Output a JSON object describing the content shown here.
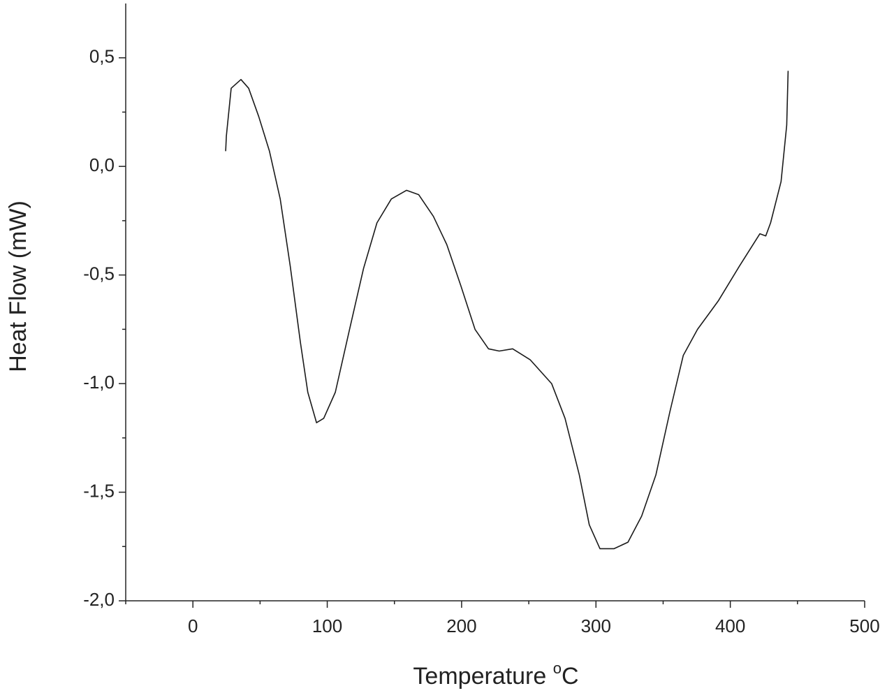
{
  "chart_data": {
    "type": "line",
    "x_label": "Temperature",
    "x_label_sup": "o",
    "x_label_unit": "C",
    "y_label": "Heat Flow (mW)",
    "color": "#1a1a1a",
    "x": [
      24.4,
      24.9,
      28.5,
      35.8,
      41.5,
      49,
      57,
      65,
      72.5,
      80,
      85.5,
      92,
      97.4,
      106,
      116.6,
      127,
      137,
      147.7,
      159,
      168,
      179,
      189,
      199.5,
      210,
      220,
      228,
      238,
      251,
      267,
      277,
      287.6,
      295,
      303,
      313.5,
      323.8,
      334,
      344.6,
      355,
      365,
      375.6,
      391,
      406.7,
      422,
      426.4,
      430,
      437.8,
      442,
      443
    ],
    "values": [
      0.07,
      0.14,
      0.36,
      0.4,
      0.36,
      0.23,
      0.07,
      -0.15,
      -0.46,
      -0.81,
      -1.04,
      -1.18,
      -1.16,
      -1.04,
      -0.75,
      -0.47,
      -0.26,
      -0.15,
      -0.11,
      -0.13,
      -0.23,
      -0.36,
      -0.55,
      -0.75,
      -0.84,
      -0.85,
      -0.84,
      -0.89,
      -1.0,
      -1.16,
      -1.42,
      -1.65,
      -1.76,
      -1.76,
      -1.73,
      -1.61,
      -1.42,
      -1.13,
      -0.87,
      -0.75,
      -0.62,
      -0.46,
      -0.31,
      -0.32,
      -0.26,
      -0.07,
      0.19,
      0.44
    ],
    "xlim": [
      -50,
      500
    ],
    "xticks": [
      0,
      100,
      200,
      300,
      400,
      500
    ],
    "ylim": [
      -2.0,
      0.75
    ],
    "yticks": [
      {
        "value": 0.5,
        "label": "0,5"
      },
      {
        "value": 0.0,
        "label": "0,0"
      },
      {
        "value": -0.5,
        "label": "-0,5"
      },
      {
        "value": -1.0,
        "label": "-1,0"
      },
      {
        "value": -1.5,
        "label": "-1,5"
      },
      {
        "value": -2.0,
        "label": "-2,0"
      }
    ],
    "grid": false
  }
}
